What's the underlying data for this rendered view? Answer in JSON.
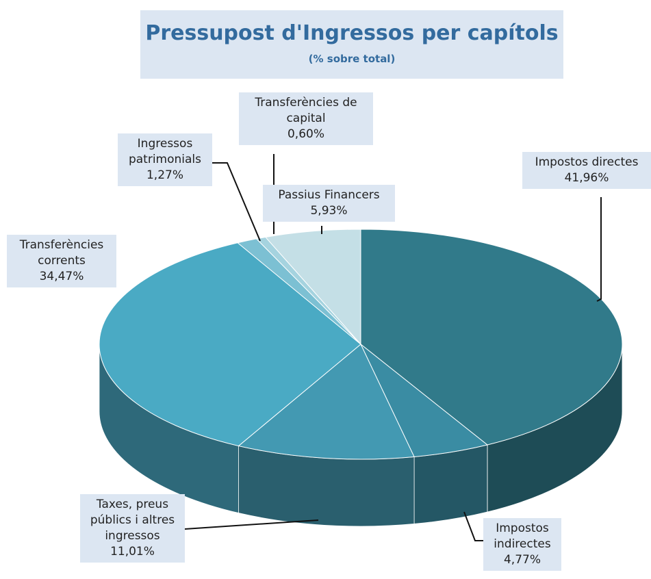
{
  "chart_data": {
    "type": "pie3d",
    "title": "Pressupost d'Ingressos per capítols",
    "subtitle": "(% sobre total)",
    "categories": [
      "Impostos directes",
      "Impostos indirectes",
      "Taxes, preus públics i altres ingressos",
      "Transferències corrents",
      "Ingressos patrimonials",
      "Transferències de capital",
      "Passius Financers"
    ],
    "values": [
      41.96,
      4.77,
      11.01,
      34.47,
      1.27,
      0.6,
      5.93
    ],
    "value_labels": [
      "41,96%",
      "4,77%",
      "11,01%",
      "34,47%",
      "1,27%",
      "0,60%",
      "5,93%"
    ],
    "colors": [
      "#317a8a",
      "#3a8ca3",
      "#4399b2",
      "#4aaac4",
      "#7cc0d3",
      "#a5d3df",
      "#c4dfe6"
    ]
  }
}
